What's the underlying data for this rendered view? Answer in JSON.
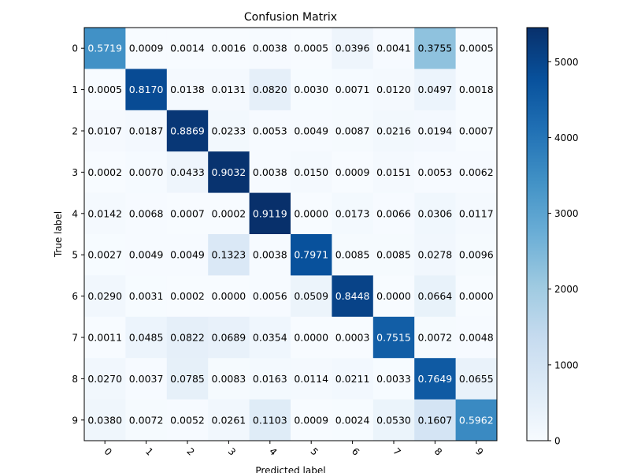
{
  "chart_data": {
    "type": "heatmap",
    "title": "Confusion Matrix",
    "xlabel": "Predicted label",
    "ylabel": "True label",
    "x_categories": [
      "0",
      "1",
      "2",
      "3",
      "4",
      "5",
      "6",
      "7",
      "8",
      "9"
    ],
    "y_categories": [
      "0",
      "1",
      "2",
      "3",
      "4",
      "5",
      "6",
      "7",
      "8",
      "9"
    ],
    "cell_labels": [
      [
        "0.5719",
        "0.0009",
        "0.0014",
        "0.0016",
        "0.0038",
        "0.0005",
        "0.0396",
        "0.0041",
        "0.3755",
        "0.0005"
      ],
      [
        "0.0005",
        "0.8170",
        "0.0138",
        "0.0131",
        "0.0820",
        "0.0030",
        "0.0071",
        "0.0120",
        "0.0497",
        "0.0018"
      ],
      [
        "0.0107",
        "0.0187",
        "0.8869",
        "0.0233",
        "0.0053",
        "0.0049",
        "0.0087",
        "0.0216",
        "0.0194",
        "0.0007"
      ],
      [
        "0.0002",
        "0.0070",
        "0.0433",
        "0.9032",
        "0.0038",
        "0.0150",
        "0.0009",
        "0.0151",
        "0.0053",
        "0.0062"
      ],
      [
        "0.0142",
        "0.0068",
        "0.0007",
        "0.0002",
        "0.9119",
        "0.0000",
        "0.0173",
        "0.0066",
        "0.0306",
        "0.0117"
      ],
      [
        "0.0027",
        "0.0049",
        "0.0049",
        "0.1323",
        "0.0038",
        "0.7971",
        "0.0085",
        "0.0085",
        "0.0278",
        "0.0096"
      ],
      [
        "0.0290",
        "0.0031",
        "0.0002",
        "0.0000",
        "0.0056",
        "0.0509",
        "0.8448",
        "0.0000",
        "0.0664",
        "0.0000"
      ],
      [
        "0.0011",
        "0.0485",
        "0.0822",
        "0.0689",
        "0.0354",
        "0.0000",
        "0.0003",
        "0.7515",
        "0.0072",
        "0.0048"
      ],
      [
        "0.0270",
        "0.0037",
        "0.0785",
        "0.0083",
        "0.0163",
        "0.0114",
        "0.0211",
        "0.0033",
        "0.7649",
        "0.0655"
      ],
      [
        "0.0380",
        "0.0072",
        "0.0052",
        "0.0261",
        "0.1103",
        "0.0009",
        "0.0024",
        "0.0530",
        "0.1607",
        "0.5962"
      ]
    ],
    "colorbar": {
      "colormap": "Blues",
      "range": [
        0,
        5450
      ],
      "ticks": [
        0,
        1000,
        2000,
        3000,
        4000,
        5000
      ]
    },
    "grid": false
  }
}
